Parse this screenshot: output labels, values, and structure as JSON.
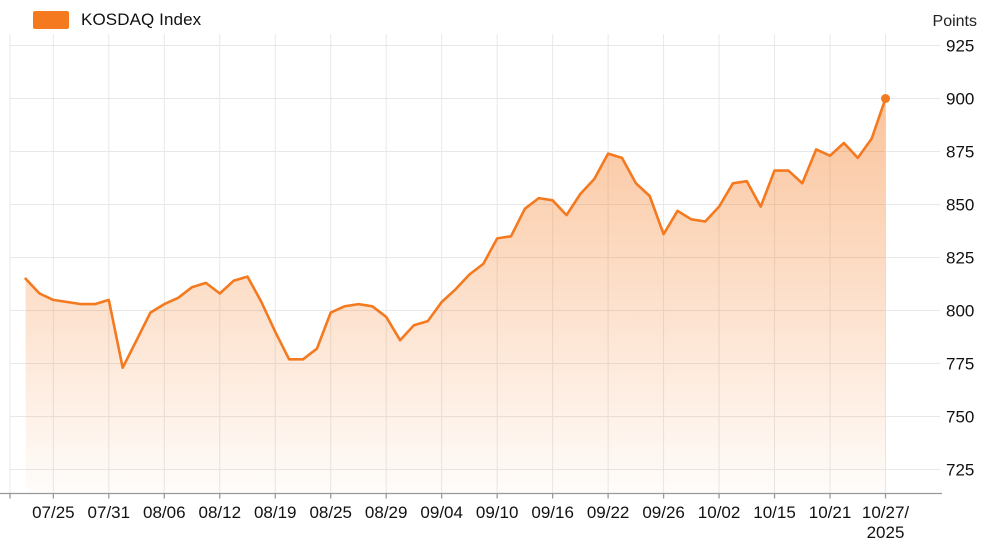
{
  "legend": {
    "label": "KOSDAQ Index",
    "swatch_color": "#F4791F"
  },
  "y_axis": {
    "unit_label": "Points"
  },
  "colors": {
    "accent": "#F4791F",
    "gridline": "#E8E8E8",
    "axis": "#999999",
    "text": "#111111"
  },
  "chart_data": {
    "type": "area",
    "title": "KOSDAQ Index",
    "series_name": "KOSDAQ Index",
    "unit": "Points",
    "legend_position": "top-left",
    "grid": true,
    "ylim": [
      712.5,
      937.5
    ],
    "y_ticks": [
      925,
      900,
      875,
      850,
      825,
      800,
      775,
      750,
      725
    ],
    "x": [
      "07/23",
      "07/24",
      "07/25",
      "07/28",
      "07/29",
      "07/30",
      "07/31",
      "08/01",
      "08/04",
      "08/05",
      "08/06",
      "08/07",
      "08/08",
      "08/11",
      "08/12",
      "08/13",
      "08/14",
      "08/18",
      "08/19",
      "08/20",
      "08/21",
      "08/22",
      "08/25",
      "08/26",
      "08/27",
      "08/28",
      "08/29",
      "09/01",
      "09/02",
      "09/03",
      "09/04",
      "09/05",
      "09/08",
      "09/09",
      "09/10",
      "09/11",
      "09/12",
      "09/15",
      "09/16",
      "09/17",
      "09/18",
      "09/19",
      "09/22",
      "09/23",
      "09/24",
      "09/25",
      "09/26",
      "09/29",
      "09/30",
      "10/01",
      "10/02",
      "10/10",
      "10/13",
      "10/14",
      "10/15",
      "10/16",
      "10/17",
      "10/20",
      "10/21",
      "10/22",
      "10/23",
      "10/24",
      "10/27"
    ],
    "values": [
      815,
      808,
      805,
      804,
      803,
      803,
      805,
      773,
      786,
      799,
      803,
      806,
      811,
      813,
      808,
      814,
      816,
      804,
      790,
      777,
      777,
      782,
      799,
      802,
      803,
      802,
      797,
      786,
      793,
      795,
      804,
      810,
      817,
      822,
      834,
      835,
      848,
      853,
      852,
      845,
      855,
      862,
      874,
      872,
      860,
      854,
      836,
      847,
      843,
      842,
      849,
      860,
      861,
      849,
      866,
      866,
      860,
      876,
      873,
      879,
      872,
      881,
      900
    ],
    "x_ticks": [
      {
        "index": 2,
        "label": "07/25"
      },
      {
        "index": 6,
        "label": "07/31"
      },
      {
        "index": 10,
        "label": "08/06"
      },
      {
        "index": 14,
        "label": "08/12"
      },
      {
        "index": 18,
        "label": "08/19"
      },
      {
        "index": 22,
        "label": "08/25"
      },
      {
        "index": 26,
        "label": "08/29"
      },
      {
        "index": 30,
        "label": "09/04"
      },
      {
        "index": 34,
        "label": "09/10"
      },
      {
        "index": 38,
        "label": "09/16"
      },
      {
        "index": 42,
        "label": "09/22"
      },
      {
        "index": 46,
        "label": "09/26"
      },
      {
        "index": 50,
        "label": "10/02"
      },
      {
        "index": 54,
        "label": "10/15"
      },
      {
        "index": 58,
        "label": "10/21"
      },
      {
        "index": 62,
        "label": "10/27/",
        "label_line2": "2025"
      }
    ],
    "end_point": {
      "x": "10/27",
      "value": 900,
      "marker": "dot"
    }
  }
}
